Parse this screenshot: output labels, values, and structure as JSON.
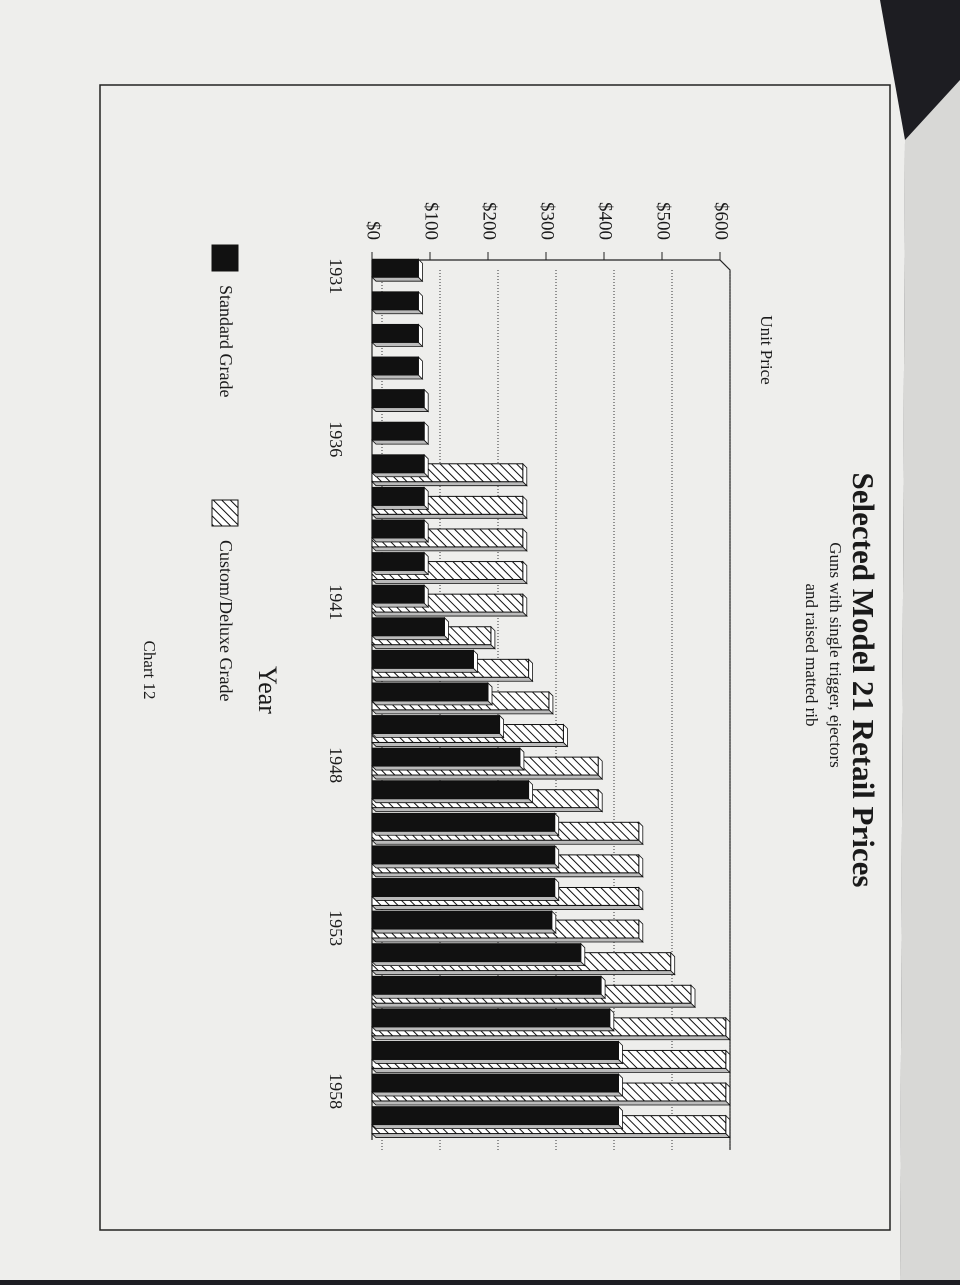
{
  "chart_data": {
    "type": "bar",
    "title": "Selected Model 21 Retail Prices",
    "subtitle": [
      "Guns with single trigger, ejectors",
      "and raised matted rib"
    ],
    "y_axis_label": "Unit Price",
    "x_axis_label": "Year",
    "caption": "Chart 12",
    "categories": [
      "1931",
      null,
      null,
      null,
      null,
      "1936",
      null,
      null,
      null,
      null,
      "1941",
      null,
      null,
      null,
      null,
      "1948",
      null,
      null,
      null,
      null,
      "1953",
      null,
      null,
      null,
      null,
      "1958",
      null
    ],
    "series": [
      {
        "name": "Standard Grade",
        "color": "#111111",
        "pattern": "solid",
        "values": [
          80,
          80,
          80,
          80,
          90,
          90,
          90,
          90,
          90,
          90,
          90,
          125,
          175,
          200,
          220,
          255,
          270,
          315,
          315,
          315,
          310,
          360,
          395,
          410,
          425,
          425,
          425
        ]
      },
      {
        "name": "Custom/Deluxe Grade",
        "color": "#111111",
        "pattern": "hatch",
        "values": [
          null,
          null,
          null,
          null,
          null,
          null,
          260,
          260,
          260,
          260,
          260,
          205,
          270,
          305,
          330,
          390,
          390,
          460,
          460,
          460,
          460,
          515,
          550,
          610,
          610,
          610,
          610
        ]
      }
    ],
    "ylim": [
      0,
      600
    ],
    "yticks": [
      {
        "value": 0,
        "label": "$0"
      },
      {
        "value": 100,
        "label": "$100"
      },
      {
        "value": 200,
        "label": "$200"
      },
      {
        "value": 300,
        "label": "$300"
      },
      {
        "value": 400,
        "label": "$400"
      },
      {
        "value": 500,
        "label": "$500"
      },
      {
        "value": 600,
        "label": "$600"
      }
    ],
    "grid": true
  }
}
